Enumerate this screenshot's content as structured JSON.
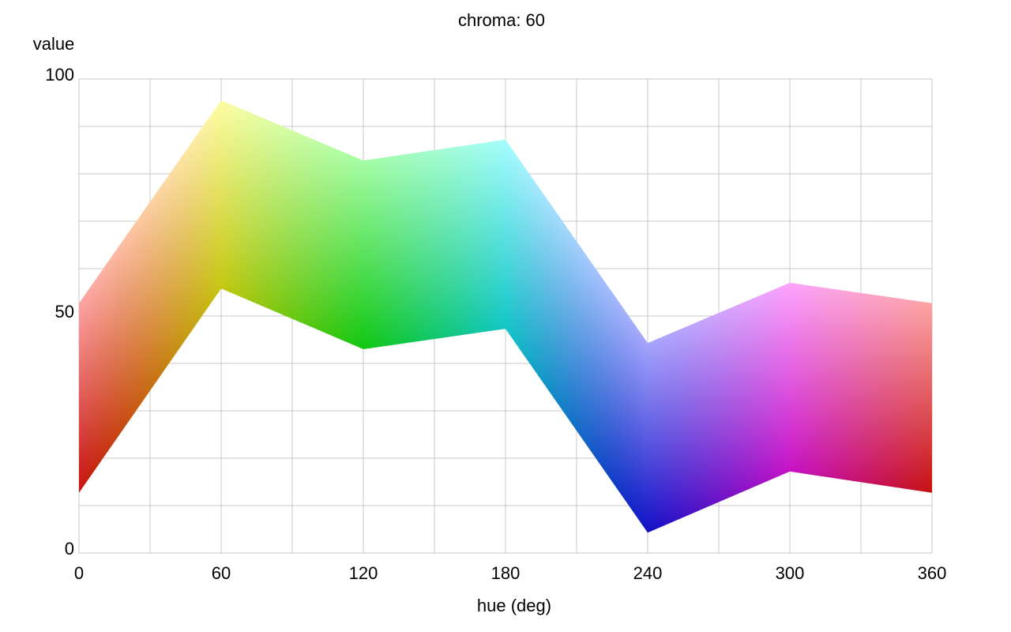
{
  "chart_data": {
    "type": "band",
    "title": "chroma: 60",
    "xlabel": "hue (deg)",
    "ylabel": "value",
    "x": [
      0,
      60,
      120,
      180,
      240,
      300,
      360
    ],
    "upper": [
      52.7,
      95.5,
      82.8,
      87.2,
      44.3,
      57,
      52.7
    ],
    "lower": [
      12.7,
      55.8,
      43,
      47.3,
      4.3,
      17.2,
      12.7
    ],
    "xlim": [
      0,
      360
    ],
    "ylim": [
      0,
      100
    ],
    "xticks": [
      0,
      60,
      120,
      180,
      240,
      300,
      360
    ],
    "yticks": [
      0,
      50,
      100
    ],
    "xminorticks": [
      30,
      90,
      150,
      210,
      270,
      330
    ],
    "yminorticks": [
      10,
      20,
      30,
      40,
      60,
      70,
      80,
      90
    ],
    "grid": true
  }
}
